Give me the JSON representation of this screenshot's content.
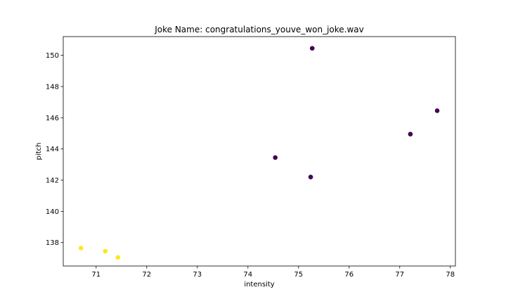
{
  "chart_data": {
    "type": "scatter",
    "title": "Joke Name: congratulations_youve_won_joke.wav",
    "xlabel": "intensity",
    "ylabel": "pitch",
    "xlim": [
      70.35,
      78.1
    ],
    "ylim": [
      136.5,
      151.2
    ],
    "xticks": [
      71,
      72,
      73,
      74,
      75,
      76,
      77,
      78
    ],
    "yticks": [
      138,
      140,
      142,
      144,
      146,
      148,
      150
    ],
    "grid": false,
    "colors": {
      "cluster_0": "#440154",
      "cluster_1": "#fde725"
    },
    "points": [
      {
        "x": 75.27,
        "y": 150.45,
        "cluster": 0
      },
      {
        "x": 77.74,
        "y": 146.45,
        "cluster": 0
      },
      {
        "x": 77.21,
        "y": 144.95,
        "cluster": 0
      },
      {
        "x": 74.54,
        "y": 143.45,
        "cluster": 0
      },
      {
        "x": 75.24,
        "y": 142.2,
        "cluster": 0
      },
      {
        "x": 70.7,
        "y": 137.65,
        "cluster": 1
      },
      {
        "x": 71.18,
        "y": 137.45,
        "cluster": 1
      },
      {
        "x": 71.43,
        "y": 137.05,
        "cluster": 1
      }
    ]
  }
}
